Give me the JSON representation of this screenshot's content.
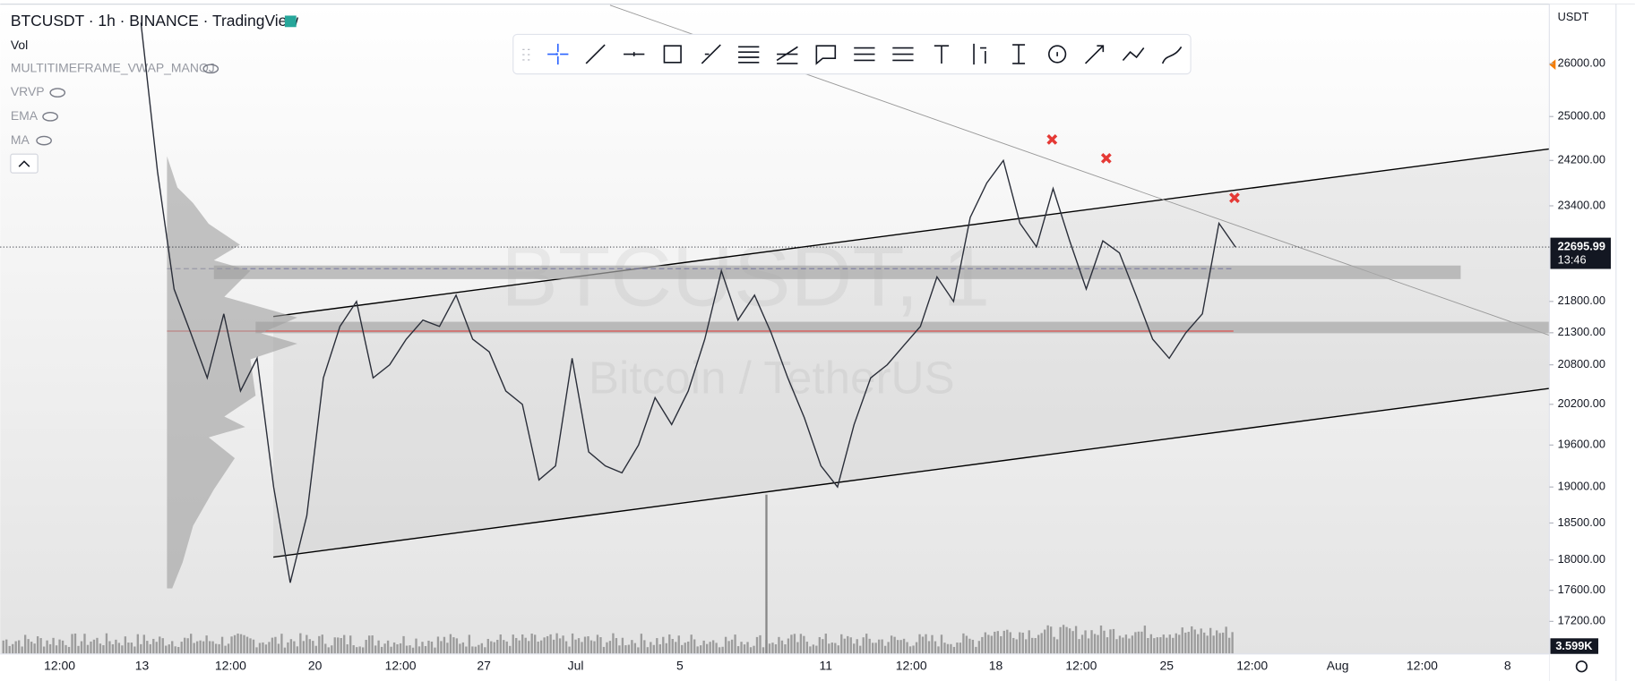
{
  "header": {
    "title": "BTCUSDT · 1h · BINANCE · TradingView"
  },
  "indicators": [
    "Vol",
    "MULTITIMEFRAME_VWAP_MANOJ",
    "VRVP",
    "EMA",
    "MA"
  ],
  "chart_data": {
    "type": "line",
    "color": "#2a2e39",
    "log_scale": true,
    "currency": "USDT",
    "watermark": {
      "symbol": "BTCUSDT, 1",
      "description": "Bitcoin / TetherUS"
    },
    "values": [
      26800,
      24000,
      22000,
      21300,
      20600,
      21600,
      20400,
      20900,
      19000,
      17700,
      18600,
      20600,
      21400,
      21800,
      20600,
      20800,
      21200,
      21500,
      21400,
      21900,
      21200,
      21000,
      20400,
      20200,
      19100,
      19300,
      20900,
      19500,
      19300,
      19200,
      19600,
      20300,
      19900,
      20400,
      21200,
      22300,
      21500,
      21900,
      21300,
      20600,
      20000,
      19300,
      19000,
      19900,
      20600,
      20800,
      21100,
      21400,
      22200,
      21800,
      23200,
      23800,
      24200,
      23100,
      22700,
      23700,
      22800,
      22000,
      22800,
      22600,
      21900,
      21200,
      20900,
      21300,
      21600,
      23100,
      22696
    ],
    "ylim": [
      16790,
      27170
    ],
    "yticks": [
      {
        "value": 26000,
        "label": "26000.00"
      },
      {
        "value": 25000,
        "label": "25000.00"
      },
      {
        "value": 24200,
        "label": "24200.00"
      },
      {
        "value": 23400,
        "label": "23400.00"
      },
      {
        "value": 21800,
        "label": "21800.00"
      },
      {
        "value": 21300,
        "label": "21300.00"
      },
      {
        "value": 20800,
        "label": "20800.00"
      },
      {
        "value": 20200,
        "label": "20200.00"
      },
      {
        "value": 19600,
        "label": "19600.00"
      },
      {
        "value": 19000,
        "label": "19000.00"
      },
      {
        "value": 18500,
        "label": "18500.00"
      },
      {
        "value": 18000,
        "label": "18000.00"
      },
      {
        "value": 17600,
        "label": "17600.00"
      },
      {
        "value": 17200,
        "label": "17200.00"
      }
    ],
    "last_price": {
      "value": 22695.99,
      "label": "22695.99"
    },
    "countdown": "13:46",
    "volume_label": "3.599K",
    "x_labels": [
      "12:00",
      "13",
      "12:00",
      "20",
      "12:00",
      "27",
      "Jul",
      "5",
      "11",
      "12:00",
      "18",
      "12:00",
      "25",
      "12:00",
      "Aug",
      "12:00",
      "8"
    ]
  }
}
